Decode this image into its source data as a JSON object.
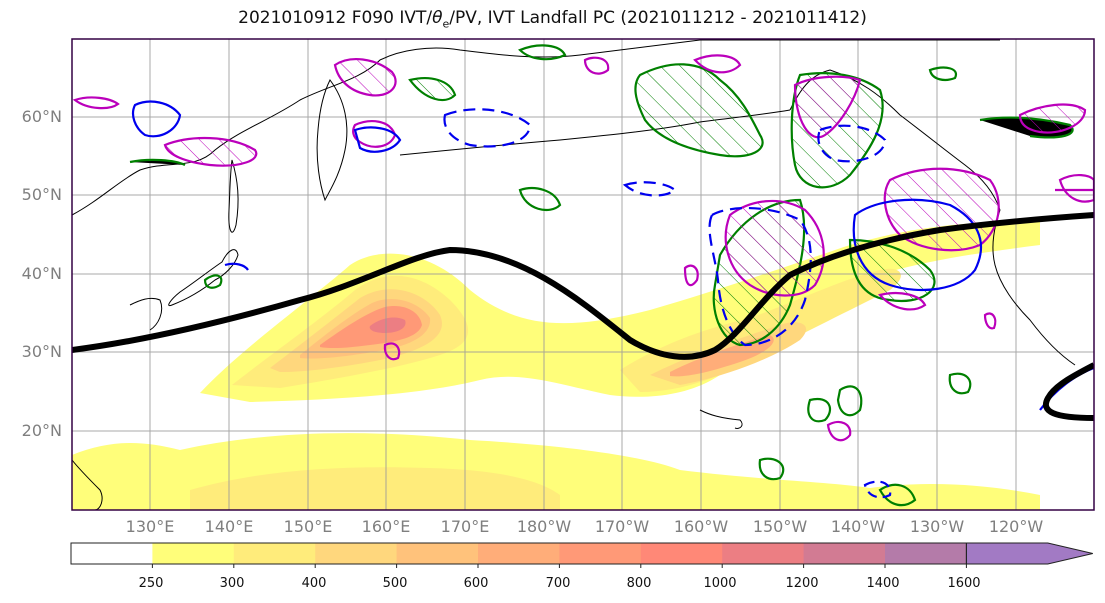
{
  "title": "2021010912 F090 IVT/θe/PV, IVT Landfall PC (2021011212 - 2021011412)",
  "title_parts": {
    "prefix": "2021010912 F090 IVT/",
    "theta": "θ",
    "theta_sub": "e",
    "suffix": "/PV, IVT Landfall PC (2021011212 - 2021011412)"
  },
  "map": {
    "lat_labels": [
      "60°N",
      "50°N",
      "40°N",
      "30°N",
      "20°N"
    ],
    "lon_labels": [
      "130°E",
      "140°E",
      "150°E",
      "160°E",
      "170°E",
      "180°W",
      "170°W",
      "160°W",
      "150°W",
      "140°W",
      "130°W",
      "120°W"
    ]
  },
  "colorbar": {
    "tick_labels": [
      "250",
      "300",
      "400",
      "500",
      "600",
      "700",
      "800",
      "1000",
      "1200",
      "1400",
      "1600"
    ],
    "colors": [
      "#ffffff",
      "#fffe7a",
      "#ffec7b",
      "#ffd77d",
      "#ffc27b",
      "#ffad79",
      "#ff9977",
      "#ff8877",
      "#ec7e83",
      "#d27b93",
      "#b47ba9",
      "#a27ac4"
    ]
  },
  "colors": {
    "jet_axis": "#000000",
    "pv_contour": "#008000",
    "theta_contour": "#bb00bb",
    "ivt_contour": "#0000ee",
    "grid": "#999999",
    "frame": "#330044"
  }
}
